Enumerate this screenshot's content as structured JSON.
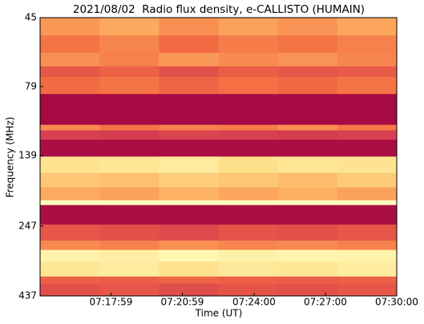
{
  "chart_data": {
    "type": "heatmap",
    "title": "2021/08/02  Radio flux density, e-CALLISTO (HUMAIN)",
    "x_label": "Time (UT)",
    "y_label": "Frequency (MHz)",
    "xlim": [
      26100,
      27000
    ],
    "xticks": [
      {
        "value": 26279,
        "label": "07:17:59"
      },
      {
        "value": 26459,
        "label": "07:20:59"
      },
      {
        "value": 26640,
        "label": "07:24:00"
      },
      {
        "value": 26820,
        "label": "07:27:00"
      },
      {
        "value": 27000,
        "label": "07:30:00"
      }
    ],
    "ylim": [
      437,
      45
    ],
    "y_log": true,
    "yticks": [
      45,
      79,
      139,
      247,
      437
    ],
    "colormap": [
      "#9e0142",
      "#d53e4f",
      "#f46d43",
      "#fdae61",
      "#fee08b",
      "#ffffbf",
      "#e6f598",
      "#abdda4"
    ],
    "x_edges": [
      26100,
      26250,
      26400,
      26550,
      26700,
      26850,
      27000
    ],
    "y_edges": [
      45,
      52,
      60,
      67,
      73,
      84,
      108,
      113,
      122,
      140,
      160,
      180,
      200,
      208,
      244,
      278,
      300,
      330,
      373,
      395,
      437
    ],
    "z": [
      [
        0.38,
        0.42,
        0.36,
        0.4,
        0.37,
        0.41
      ],
      [
        0.3,
        0.34,
        0.28,
        0.32,
        0.3,
        0.33
      ],
      [
        0.36,
        0.33,
        0.38,
        0.35,
        0.37,
        0.34
      ],
      [
        0.22,
        0.25,
        0.2,
        0.24,
        0.22,
        0.23
      ],
      [
        0.28,
        0.3,
        0.26,
        0.29,
        0.27,
        0.3
      ],
      [
        0.02,
        0.02,
        0.02,
        0.02,
        0.02,
        0.02
      ],
      [
        0.35,
        0.3,
        0.33,
        0.32,
        0.36,
        0.31
      ],
      [
        0.15,
        0.14,
        0.16,
        0.15,
        0.14,
        0.15
      ],
      [
        0.03,
        0.03,
        0.03,
        0.03,
        0.03,
        0.03
      ],
      [
        0.58,
        0.6,
        0.62,
        0.57,
        0.6,
        0.59
      ],
      [
        0.5,
        0.48,
        0.52,
        0.5,
        0.47,
        0.51
      ],
      [
        0.42,
        0.4,
        0.44,
        0.41,
        0.43,
        0.4
      ],
      [
        0.72,
        0.72,
        0.72,
        0.72,
        0.72,
        0.72
      ],
      [
        0.03,
        0.03,
        0.03,
        0.03,
        0.03,
        0.03
      ],
      [
        0.22,
        0.2,
        0.18,
        0.21,
        0.2,
        0.22
      ],
      [
        0.35,
        0.33,
        0.36,
        0.34,
        0.35,
        0.33
      ],
      [
        0.66,
        0.64,
        0.68,
        0.65,
        0.67,
        0.66
      ],
      [
        0.6,
        0.62,
        0.58,
        0.61,
        0.6,
        0.63
      ],
      [
        0.25,
        0.24,
        0.26,
        0.25,
        0.24,
        0.25
      ],
      [
        0.2,
        0.22,
        0.19,
        0.21,
        0.2,
        0.22
      ]
    ]
  }
}
